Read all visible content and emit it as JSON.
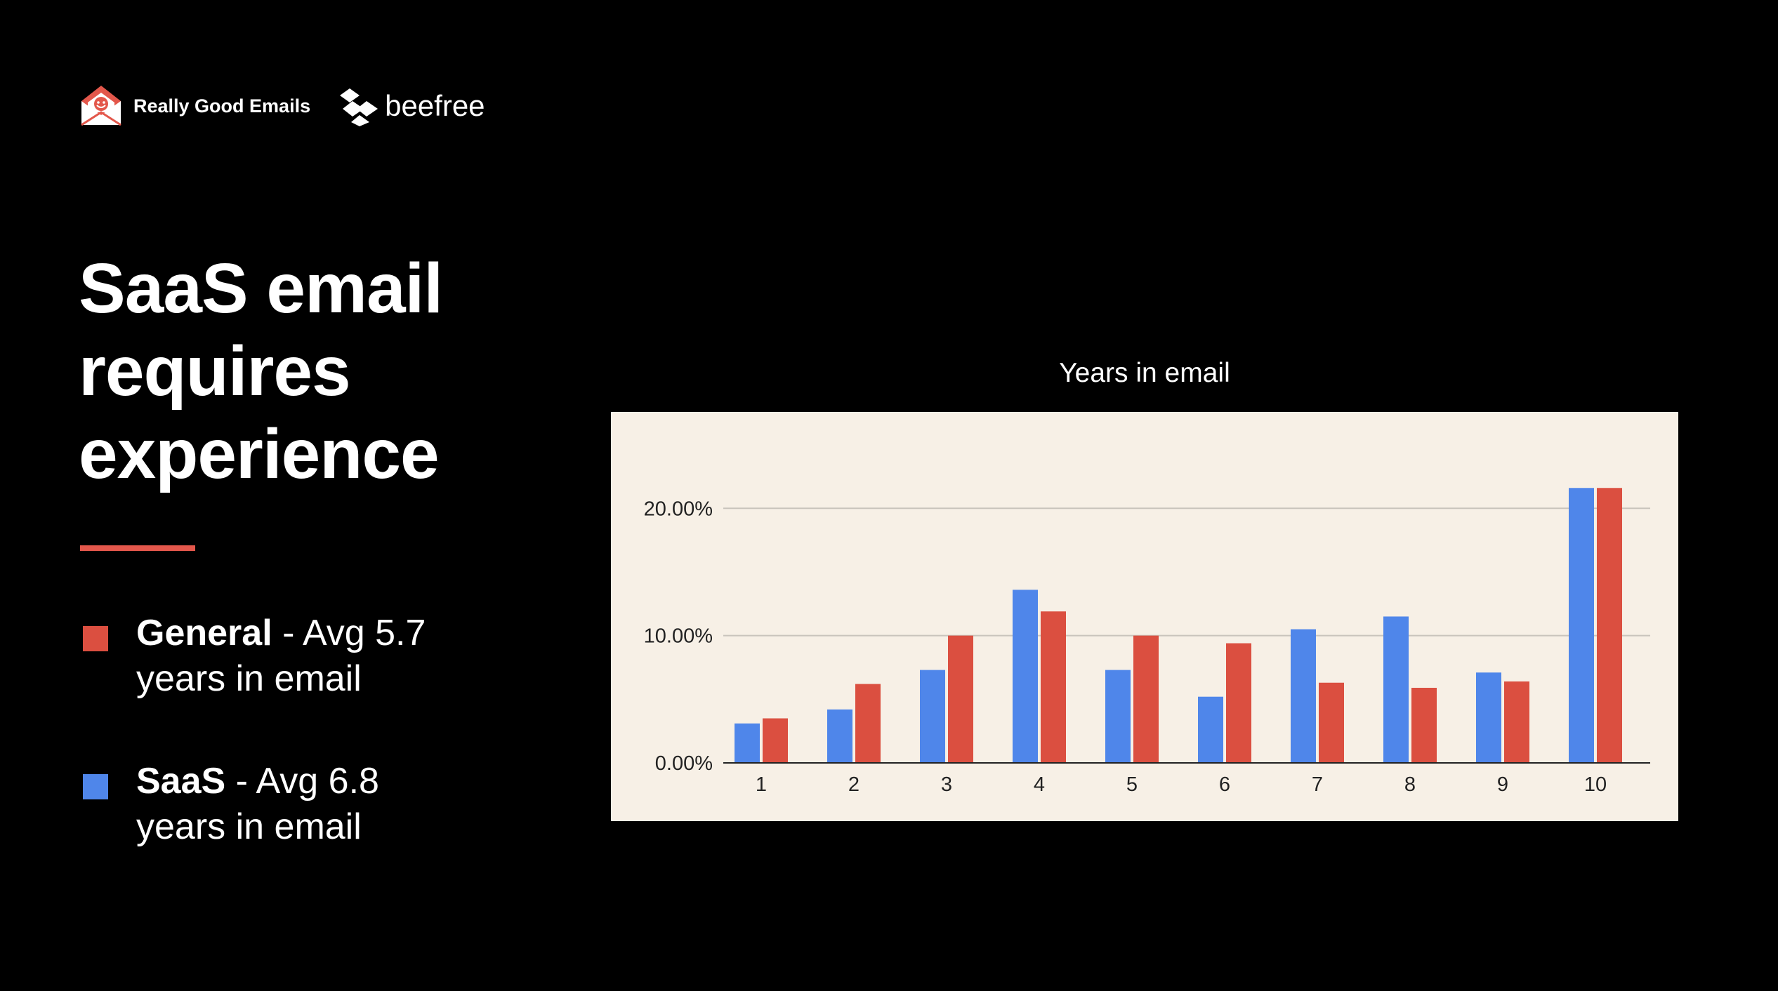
{
  "header": {
    "brand_primary": "Really Good Emails",
    "brand_secondary": "beefree",
    "brand_primary_icon": "envelope-smiley-icon",
    "brand_secondary_icon": "beefree-mark-icon"
  },
  "title": {
    "line1": "SaaS email",
    "line2": "requires",
    "line3": "experience"
  },
  "legend": {
    "general": {
      "label": "General",
      "rest": " - Avg 5.7",
      "line2": "years in email",
      "color": "#db4f40"
    },
    "saas": {
      "label": "SaaS",
      "rest": " - Avg 6.8",
      "line2": "years in email",
      "color": "#4f86ea"
    }
  },
  "accent_color": "#e3574b",
  "chart_data": {
    "type": "bar",
    "title": "Years in email",
    "xlabel": "",
    "ylabel": "",
    "categories": [
      "1",
      "2",
      "3",
      "4",
      "5",
      "6",
      "7",
      "8",
      "9",
      "10"
    ],
    "series": [
      {
        "color": "#4f86ea",
        "values": [
          3.1,
          4.2,
          7.3,
          13.6,
          7.3,
          5.2,
          10.5,
          11.5,
          7.1,
          21.6
        ]
      },
      {
        "color": "#db4f40",
        "values": [
          3.5,
          6.2,
          10.0,
          11.9,
          10.0,
          9.4,
          6.3,
          5.9,
          6.4,
          21.6
        ]
      }
    ],
    "ylim": [
      0,
      24
    ],
    "yticks": [
      0,
      10,
      20
    ],
    "ytick_labels": [
      "0.00%",
      "10.00%",
      "20.00%"
    ],
    "grid": true,
    "legend": "none",
    "background": "#f7f0e6"
  }
}
